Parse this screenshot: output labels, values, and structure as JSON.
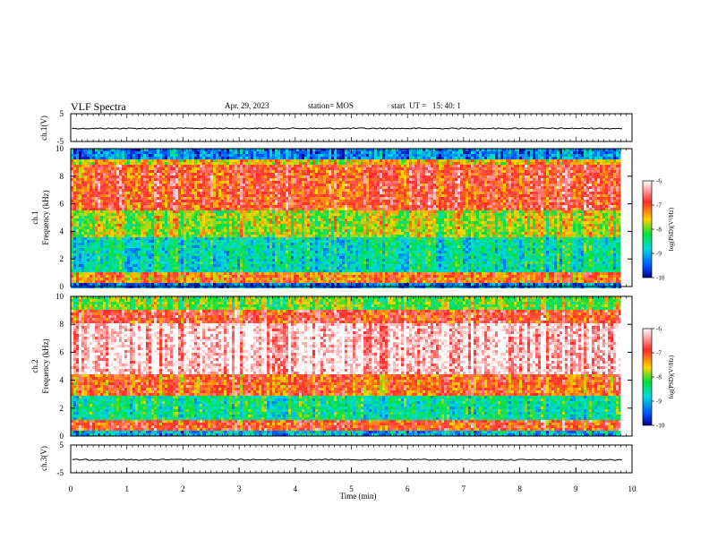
{
  "header": {
    "title": "VLF Spectra",
    "date": "Apr. 29, 2023",
    "station": "station= MOS",
    "start_time": "start  UT =   15: 40: 1"
  },
  "colors": {
    "colormap": [
      "#ffffff",
      "#ff2a2a",
      "#ffd500",
      "#00e03a",
      "#00dcdc",
      "#0050ff",
      "#00008c"
    ]
  },
  "chart_data": [
    {
      "type": "line",
      "name": "ch1-voltage",
      "ylabel": "ch.1(V)",
      "xlim": [
        0,
        10
      ],
      "ylim": [
        -5,
        5
      ],
      "yticks": [
        "5",
        "-5"
      ],
      "y_level": -0.3
    },
    {
      "type": "heatmap",
      "name": "ch1-spectrogram",
      "ylabel": "ch.1\nFrequency (kHz)",
      "xlim": [
        0,
        9.8
      ],
      "ylim": [
        0,
        10
      ],
      "yticks": [
        "0",
        "2",
        "4",
        "6",
        "8",
        "10"
      ],
      "colorbar": {
        "label": "log(PSD)(V²/Hz)",
        "range": [
          -10,
          -6
        ],
        "ticks": [
          "-6",
          "-7",
          "-8",
          "-9",
          "-10"
        ]
      },
      "bands_logpsd": [
        {
          "f": [
            0,
            0.3
          ],
          "v": -9.3
        },
        {
          "f": [
            0.3,
            1.1
          ],
          "v": -7.2
        },
        {
          "f": [
            1.1,
            3.5
          ],
          "v": -8.6
        },
        {
          "f": [
            3.5,
            5.5
          ],
          "v": -7.8
        },
        {
          "f": [
            5.5,
            8.8
          ],
          "v": -6.9
        },
        {
          "f": [
            8.8,
            9.2
          ],
          "v": -7.5
        },
        {
          "f": [
            9.2,
            10
          ],
          "v": -9.2
        }
      ]
    },
    {
      "type": "heatmap",
      "name": "ch2-spectrogram",
      "ylabel": "ch.2\nFrequency (kHz)",
      "xlim": [
        0,
        9.8
      ],
      "ylim": [
        0,
        10
      ],
      "yticks": [
        "0",
        "2",
        "4",
        "6",
        "8",
        "10"
      ],
      "colorbar": {
        "label": "log(PSD)(V²/Hz)",
        "range": [
          -10,
          -6
        ],
        "ticks": [
          "-6",
          "-7",
          "-8",
          "-9",
          "-10"
        ]
      },
      "bands_logpsd": [
        {
          "f": [
            0,
            0.3
          ],
          "v": -9.0
        },
        {
          "f": [
            0.3,
            1.2
          ],
          "v": -7.0
        },
        {
          "f": [
            1.2,
            2.8
          ],
          "v": -8.5
        },
        {
          "f": [
            2.8,
            4.5
          ],
          "v": -7.1
        },
        {
          "f": [
            4.5,
            8.0
          ],
          "v": -6.2
        },
        {
          "f": [
            8.0,
            9.0
          ],
          "v": -6.9
        },
        {
          "f": [
            9.0,
            10
          ],
          "v": -8.0
        }
      ]
    },
    {
      "type": "line",
      "name": "ch3-voltage",
      "ylabel": "ch.3(V)",
      "xlabel": "Time (min)",
      "xlim": [
        0,
        10
      ],
      "ylim": [
        -5,
        5
      ],
      "yticks": [
        "5",
        "-5"
      ],
      "xticks": [
        "0",
        "1",
        "2",
        "3",
        "4",
        "5",
        "6",
        "7",
        "8",
        "9",
        "10"
      ],
      "y_level": -0.3
    }
  ]
}
